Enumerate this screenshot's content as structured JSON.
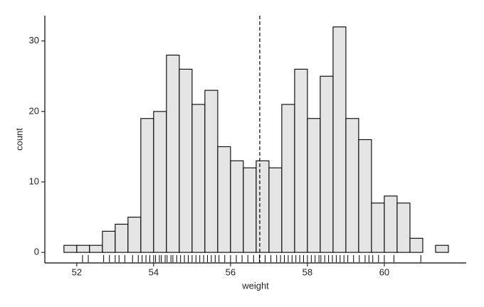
{
  "chart_data": {
    "type": "histogram",
    "x_label": "weight",
    "y_label": "count",
    "bins": [
      51.667,
      52,
      52.333,
      52.667,
      53,
      53.333,
      53.667,
      54,
      54.333,
      54.667,
      55,
      55.333,
      55.667,
      56,
      56.333,
      56.667,
      57,
      57.333,
      57.667,
      58,
      58.333,
      58.667,
      59,
      59.333,
      59.667,
      60,
      60.333,
      60.667,
      61,
      61.333,
      61.667
    ],
    "values": [
      1,
      1,
      1,
      3,
      4,
      5,
      19,
      20,
      28,
      26,
      21,
      23,
      15,
      13,
      12,
      13,
      12,
      21,
      26,
      19,
      25,
      32,
      19,
      16,
      7,
      8,
      7,
      2,
      0,
      1
    ],
    "fill": "#e5e5e5",
    "edge_color": "#000000",
    "vline": 56.76,
    "rug": [
      52.15,
      52.3,
      52.7,
      52.85,
      53.0,
      53.1,
      53.25,
      53.45,
      53.6,
      53.7,
      53.8,
      53.9,
      54.0,
      54.05,
      54.15,
      54.2,
      54.3,
      54.35,
      54.45,
      54.5,
      54.6,
      54.7,
      54.8,
      54.9,
      55.0,
      55.1,
      55.2,
      55.3,
      55.4,
      55.5,
      55.6,
      55.7,
      55.85,
      56.0,
      56.15,
      56.3,
      56.45,
      56.6,
      56.75,
      56.9,
      57.05,
      57.2,
      57.3,
      57.4,
      57.5,
      57.6,
      57.7,
      57.8,
      57.9,
      58.0,
      58.1,
      58.2,
      58.3,
      58.35,
      58.45,
      58.55,
      58.65,
      58.75,
      58.85,
      58.95,
      59.05,
      59.2,
      59.35,
      59.5,
      59.6,
      59.7,
      59.85,
      60.0,
      60.25,
      60.95
    ],
    "xlim": [
      51.17,
      62.13
    ],
    "ylim": [
      -1.5,
      33.6
    ],
    "xticks": [
      52,
      54,
      56,
      58,
      60
    ],
    "yticks": [
      0,
      10,
      20,
      30
    ]
  }
}
